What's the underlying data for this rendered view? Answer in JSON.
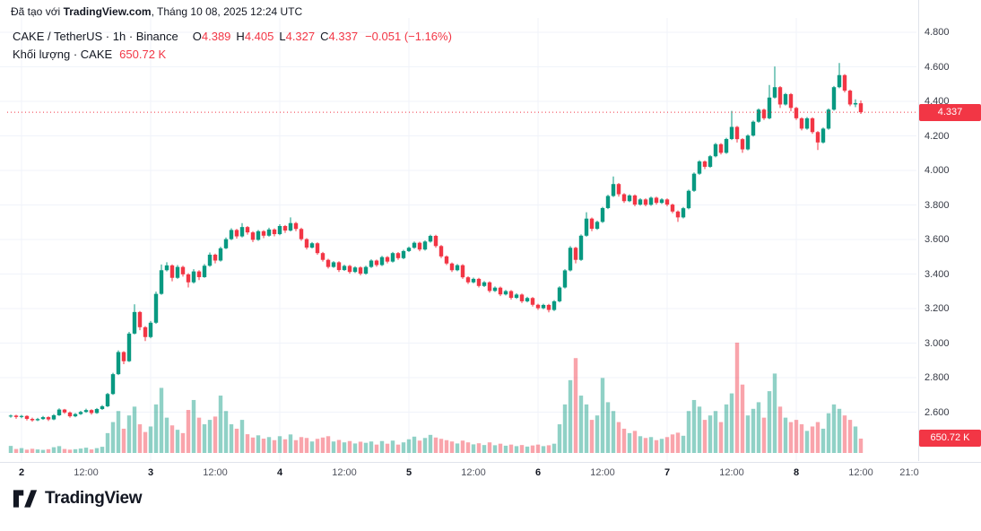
{
  "attribution": {
    "prefix": "Đã tạo với ",
    "brand": "TradingView.com",
    "suffix": ", Tháng 10 08, 2025 12:24 UTC"
  },
  "legend": {
    "symbol_title": "CAKE / TetherUS · 1h · Binance",
    "ohlc": [
      {
        "label": "O",
        "value": "4.389"
      },
      {
        "label": "H",
        "value": "4.405"
      },
      {
        "label": "L",
        "value": "4.327"
      },
      {
        "label": "C",
        "value": "4.337"
      }
    ],
    "change": "−0.051 (−1.16%)",
    "volume_title": "Khối lượng · CAKE",
    "volume_value": "650.72 K"
  },
  "price_axis": {
    "ticks": [
      "4.800",
      "4.600",
      "4.400",
      "4.200",
      "4.000",
      "3.800",
      "3.600",
      "3.400",
      "3.200",
      "3.000",
      "2.800",
      "2.600"
    ],
    "last_price_label": "4.337"
  },
  "time_axis": {
    "ticks": [
      {
        "label": "2",
        "i": 2,
        "major": true
      },
      {
        "label": "12:00",
        "i": 14,
        "major": false
      },
      {
        "label": "3",
        "i": 26,
        "major": true
      },
      {
        "label": "12:00",
        "i": 38,
        "major": false
      },
      {
        "label": "4",
        "i": 50,
        "major": true
      },
      {
        "label": "12:00",
        "i": 62,
        "major": false
      },
      {
        "label": "5",
        "i": 74,
        "major": true
      },
      {
        "label": "12:00",
        "i": 86,
        "major": false
      },
      {
        "label": "6",
        "i": 98,
        "major": true
      },
      {
        "label": "12:00",
        "i": 110,
        "major": false
      },
      {
        "label": "7",
        "i": 122,
        "major": true
      },
      {
        "label": "12:00",
        "i": 134,
        "major": false
      },
      {
        "label": "8",
        "i": 146,
        "major": true
      },
      {
        "label": "12:00",
        "i": 158,
        "major": false
      },
      {
        "label": "21:0",
        "i": 167,
        "major": false
      }
    ]
  },
  "footer": {
    "brand": "TradingView"
  },
  "colors": {
    "up": "#089981",
    "down": "#f23645",
    "vol_up": "rgba(8,153,129,0.45)",
    "vol_down": "rgba(242,54,69,0.45)",
    "grid": "#f0f3fa",
    "price_line": "#f23645",
    "badge_bg": "#f23645"
  },
  "chart_data": {
    "type": "candlestick_with_volume",
    "symbol": "CAKE / TetherUS",
    "interval": "1h",
    "exchange": "Binance",
    "last": {
      "open": 4.389,
      "high": 4.405,
      "low": 4.327,
      "close": 4.337,
      "change": -0.051,
      "change_pct": -1.16,
      "volume": "650.72 K"
    },
    "price_axis_range": [
      2.5,
      4.85
    ],
    "visible_days": [
      "Oct 2",
      "Oct 3",
      "Oct 4",
      "Oct 5",
      "Oct 6",
      "Oct 7",
      "Oct 8"
    ],
    "price_line_value": 4.337,
    "ohlc_format": [
      "open",
      "high",
      "low",
      "close",
      "volume_k"
    ],
    "candles": [
      [
        2.575,
        2.586,
        2.568,
        2.58,
        320
      ],
      [
        2.58,
        2.585,
        2.562,
        2.572,
        180
      ],
      [
        2.572,
        2.584,
        2.565,
        2.578,
        220
      ],
      [
        2.578,
        2.582,
        2.552,
        2.561,
        150
      ],
      [
        2.561,
        2.568,
        2.545,
        2.553,
        190
      ],
      [
        2.553,
        2.567,
        2.548,
        2.56,
        160
      ],
      [
        2.56,
        2.578,
        2.555,
        2.571,
        140
      ],
      [
        2.571,
        2.576,
        2.549,
        2.558,
        170
      ],
      [
        2.558,
        2.589,
        2.553,
        2.582,
        260
      ],
      [
        2.582,
        2.622,
        2.578,
        2.615,
        310
      ],
      [
        2.615,
        2.619,
        2.59,
        2.598,
        180
      ],
      [
        2.598,
        2.604,
        2.568,
        2.576,
        150
      ],
      [
        2.576,
        2.595,
        2.571,
        2.589,
        170
      ],
      [
        2.589,
        2.608,
        2.584,
        2.601,
        200
      ],
      [
        2.601,
        2.62,
        2.596,
        2.612,
        240
      ],
      [
        2.612,
        2.617,
        2.586,
        2.595,
        160
      ],
      [
        2.595,
        2.624,
        2.59,
        2.618,
        220
      ],
      [
        2.618,
        2.641,
        2.613,
        2.634,
        280
      ],
      [
        2.634,
        2.712,
        2.629,
        2.705,
        900
      ],
      [
        2.705,
        2.828,
        2.7,
        2.82,
        1400
      ],
      [
        2.82,
        2.958,
        2.815,
        2.948,
        1900
      ],
      [
        2.948,
        2.953,
        2.878,
        2.895,
        1100
      ],
      [
        2.895,
        3.065,
        2.89,
        3.055,
        1700
      ],
      [
        3.055,
        3.225,
        3.05,
        3.18,
        2100
      ],
      [
        3.18,
        3.186,
        3.075,
        3.092,
        1300
      ],
      [
        3.092,
        3.098,
        3.012,
        3.035,
        950
      ],
      [
        3.035,
        3.128,
        3.028,
        3.118,
        1200
      ],
      [
        3.118,
        3.298,
        3.112,
        3.285,
        2200
      ],
      [
        3.285,
        3.455,
        3.28,
        3.422,
        2950
      ],
      [
        3.422,
        3.468,
        3.415,
        3.45,
        1600
      ],
      [
        3.45,
        3.456,
        3.358,
        3.378,
        1250
      ],
      [
        3.378,
        3.452,
        3.372,
        3.441,
        1050
      ],
      [
        3.441,
        3.448,
        3.385,
        3.398,
        900
      ],
      [
        3.398,
        3.405,
        3.322,
        3.352,
        1950
      ],
      [
        3.352,
        3.428,
        3.345,
        3.415,
        2400
      ],
      [
        3.415,
        3.422,
        3.365,
        3.382,
        1600
      ],
      [
        3.382,
        3.458,
        3.378,
        3.448,
        1300
      ],
      [
        3.448,
        3.525,
        3.442,
        3.512,
        1500
      ],
      [
        3.512,
        3.518,
        3.462,
        3.478,
        1650
      ],
      [
        3.478,
        3.558,
        3.472,
        3.549,
        2600
      ],
      [
        3.549,
        3.612,
        3.544,
        3.602,
        1900
      ],
      [
        3.602,
        3.665,
        3.596,
        3.655,
        1300
      ],
      [
        3.655,
        3.662,
        3.605,
        3.618,
        1100
      ],
      [
        3.618,
        3.695,
        3.612,
        3.672,
        1500
      ],
      [
        3.672,
        3.678,
        3.628,
        3.641,
        850
      ],
      [
        3.641,
        3.648,
        3.585,
        3.598,
        700
      ],
      [
        3.598,
        3.655,
        3.592,
        3.648,
        800
      ],
      [
        3.648,
        3.654,
        3.608,
        3.622,
        650
      ],
      [
        3.622,
        3.668,
        3.616,
        3.658,
        720
      ],
      [
        3.658,
        3.664,
        3.618,
        3.631,
        580
      ],
      [
        3.631,
        3.688,
        3.625,
        3.678,
        760
      ],
      [
        3.678,
        3.684,
        3.638,
        3.652,
        620
      ],
      [
        3.652,
        3.728,
        3.646,
        3.695,
        840
      ],
      [
        3.695,
        3.702,
        3.648,
        3.661,
        580
      ],
      [
        3.661,
        3.668,
        3.592,
        3.602,
        720
      ],
      [
        3.602,
        3.608,
        3.542,
        3.553,
        680
      ],
      [
        3.553,
        3.585,
        3.548,
        3.578,
        520
      ],
      [
        3.578,
        3.584,
        3.512,
        3.521,
        640
      ],
      [
        3.521,
        3.528,
        3.472,
        3.482,
        700
      ],
      [
        3.482,
        3.488,
        3.432,
        3.441,
        760
      ],
      [
        3.441,
        3.475,
        3.436,
        3.468,
        520
      ],
      [
        3.468,
        3.474,
        3.412,
        3.423,
        590
      ],
      [
        3.423,
        3.454,
        3.418,
        3.447,
        480
      ],
      [
        3.447,
        3.453,
        3.402,
        3.412,
        540
      ],
      [
        3.412,
        3.445,
        3.406,
        3.438,
        430
      ],
      [
        3.438,
        3.444,
        3.392,
        3.402,
        510
      ],
      [
        3.402,
        3.448,
        3.396,
        3.441,
        460
      ],
      [
        3.441,
        3.485,
        3.435,
        3.478,
        520
      ],
      [
        3.478,
        3.484,
        3.442,
        3.452,
        380
      ],
      [
        3.452,
        3.505,
        3.446,
        3.498,
        540
      ],
      [
        3.498,
        3.504,
        3.462,
        3.472,
        420
      ],
      [
        3.472,
        3.528,
        3.466,
        3.521,
        560
      ],
      [
        3.521,
        3.527,
        3.482,
        3.492,
        380
      ],
      [
        3.492,
        3.54,
        3.486,
        3.533,
        480
      ],
      [
        3.533,
        3.559,
        3.527,
        3.552,
        620
      ],
      [
        3.552,
        3.588,
        3.546,
        3.581,
        740
      ],
      [
        3.581,
        3.587,
        3.532,
        3.542,
        560
      ],
      [
        3.542,
        3.595,
        3.536,
        3.588,
        680
      ],
      [
        3.588,
        3.628,
        3.582,
        3.621,
        820
      ],
      [
        3.621,
        3.627,
        3.552,
        3.562,
        700
      ],
      [
        3.562,
        3.568,
        3.492,
        3.502,
        640
      ],
      [
        3.502,
        3.508,
        3.452,
        3.461,
        580
      ],
      [
        3.461,
        3.467,
        3.412,
        3.422,
        520
      ],
      [
        3.422,
        3.458,
        3.416,
        3.451,
        430
      ],
      [
        3.451,
        3.457,
        3.372,
        3.381,
        560
      ],
      [
        3.381,
        3.387,
        3.342,
        3.352,
        480
      ],
      [
        3.352,
        3.379,
        3.346,
        3.372,
        390
      ],
      [
        3.372,
        3.378,
        3.322,
        3.331,
        440
      ],
      [
        3.331,
        3.359,
        3.325,
        3.352,
        360
      ],
      [
        3.352,
        3.358,
        3.292,
        3.302,
        480
      ],
      [
        3.302,
        3.328,
        3.296,
        3.321,
        350
      ],
      [
        3.321,
        3.327,
        3.272,
        3.282,
        420
      ],
      [
        3.282,
        3.308,
        3.276,
        3.301,
        330
      ],
      [
        3.301,
        3.307,
        3.252,
        3.262,
        380
      ],
      [
        3.262,
        3.288,
        3.256,
        3.281,
        310
      ],
      [
        3.281,
        3.287,
        3.232,
        3.242,
        360
      ],
      [
        3.242,
        3.268,
        3.236,
        3.261,
        290
      ],
      [
        3.261,
        3.267,
        3.212,
        3.222,
        340
      ],
      [
        3.222,
        3.228,
        3.192,
        3.202,
        380
      ],
      [
        3.202,
        3.228,
        3.196,
        3.221,
        310
      ],
      [
        3.221,
        3.227,
        3.178,
        3.192,
        350
      ],
      [
        3.192,
        3.249,
        3.186,
        3.242,
        420
      ],
      [
        3.242,
        3.329,
        3.236,
        3.322,
        1300
      ],
      [
        3.322,
        3.428,
        3.316,
        3.421,
        2200
      ],
      [
        3.421,
        3.562,
        3.415,
        3.552,
        3300
      ],
      [
        3.552,
        3.558,
        3.462,
        3.482,
        4300
      ],
      [
        3.482,
        3.629,
        3.476,
        3.622,
        2600
      ],
      [
        3.622,
        3.758,
        3.616,
        3.721,
        2200
      ],
      [
        3.721,
        3.727,
        3.648,
        3.662,
        1500
      ],
      [
        3.662,
        3.709,
        3.656,
        3.702,
        1700
      ],
      [
        3.702,
        3.789,
        3.696,
        3.782,
        3400
      ],
      [
        3.782,
        3.859,
        3.776,
        3.852,
        2300
      ],
      [
        3.852,
        3.965,
        3.846,
        3.921,
        1900
      ],
      [
        3.921,
        3.927,
        3.848,
        3.862,
        1400
      ],
      [
        3.862,
        3.868,
        3.812,
        3.822,
        1100
      ],
      [
        3.822,
        3.862,
        3.816,
        3.855,
        900
      ],
      [
        3.855,
        3.861,
        3.792,
        3.802,
        1000
      ],
      [
        3.802,
        3.839,
        3.796,
        3.832,
        760
      ],
      [
        3.832,
        3.838,
        3.792,
        3.801,
        680
      ],
      [
        3.801,
        3.849,
        3.795,
        3.842,
        720
      ],
      [
        3.842,
        3.848,
        3.802,
        3.812,
        580
      ],
      [
        3.812,
        3.839,
        3.806,
        3.832,
        640
      ],
      [
        3.832,
        3.838,
        3.792,
        3.802,
        720
      ],
      [
        3.802,
        3.808,
        3.752,
        3.762,
        840
      ],
      [
        3.762,
        3.768,
        3.702,
        3.728,
        920
      ],
      [
        3.728,
        3.788,
        3.722,
        3.781,
        780
      ],
      [
        3.781,
        3.889,
        3.775,
        3.882,
        1900
      ],
      [
        3.882,
        3.988,
        3.876,
        3.981,
        2400
      ],
      [
        3.981,
        4.059,
        3.975,
        4.052,
        2100
      ],
      [
        4.052,
        4.058,
        4.008,
        4.021,
        1500
      ],
      [
        4.021,
        4.089,
        4.015,
        4.082,
        1700
      ],
      [
        4.082,
        4.159,
        4.076,
        4.152,
        1900
      ],
      [
        4.152,
        4.158,
        4.092,
        4.102,
        1400
      ],
      [
        4.102,
        4.189,
        4.096,
        4.182,
        2200
      ],
      [
        4.182,
        4.345,
        4.176,
        4.252,
        2700
      ],
      [
        4.252,
        4.258,
        4.162,
        4.181,
        5000
      ],
      [
        4.181,
        4.187,
        4.102,
        4.122,
        3100
      ],
      [
        4.122,
        4.209,
        4.116,
        4.202,
        1700
      ],
      [
        4.202,
        4.289,
        4.196,
        4.282,
        2000
      ],
      [
        4.282,
        4.359,
        4.276,
        4.352,
        2300
      ],
      [
        4.352,
        4.358,
        4.292,
        4.302,
        1600
      ],
      [
        4.302,
        4.495,
        4.296,
        4.422,
        2800
      ],
      [
        4.422,
        4.602,
        4.416,
        4.482,
        3600
      ],
      [
        4.482,
        4.488,
        4.362,
        4.382,
        2100
      ],
      [
        4.382,
        4.449,
        4.376,
        4.442,
        1600
      ],
      [
        4.442,
        4.448,
        4.342,
        4.362,
        1400
      ],
      [
        4.362,
        4.368,
        4.292,
        4.302,
        1500
      ],
      [
        4.302,
        4.308,
        4.232,
        4.242,
        1300
      ],
      [
        4.242,
        4.309,
        4.236,
        4.302,
        1000
      ],
      [
        4.302,
        4.308,
        4.212,
        4.222,
        1200
      ],
      [
        4.222,
        4.228,
        4.118,
        4.162,
        1400
      ],
      [
        4.162,
        4.249,
        4.156,
        4.242,
        1100
      ],
      [
        4.242,
        4.359,
        4.236,
        4.352,
        1800
      ],
      [
        4.352,
        4.489,
        4.346,
        4.482,
        2200
      ],
      [
        4.482,
        4.622,
        4.476,
        4.552,
        2000
      ],
      [
        4.552,
        4.558,
        4.452,
        4.462,
        1700
      ],
      [
        4.462,
        4.468,
        4.372,
        4.382,
        1500
      ],
      [
        4.382,
        4.412,
        4.366,
        4.39,
        1200
      ],
      [
        4.389,
        4.405,
        4.327,
        4.337,
        650.72
      ]
    ]
  }
}
